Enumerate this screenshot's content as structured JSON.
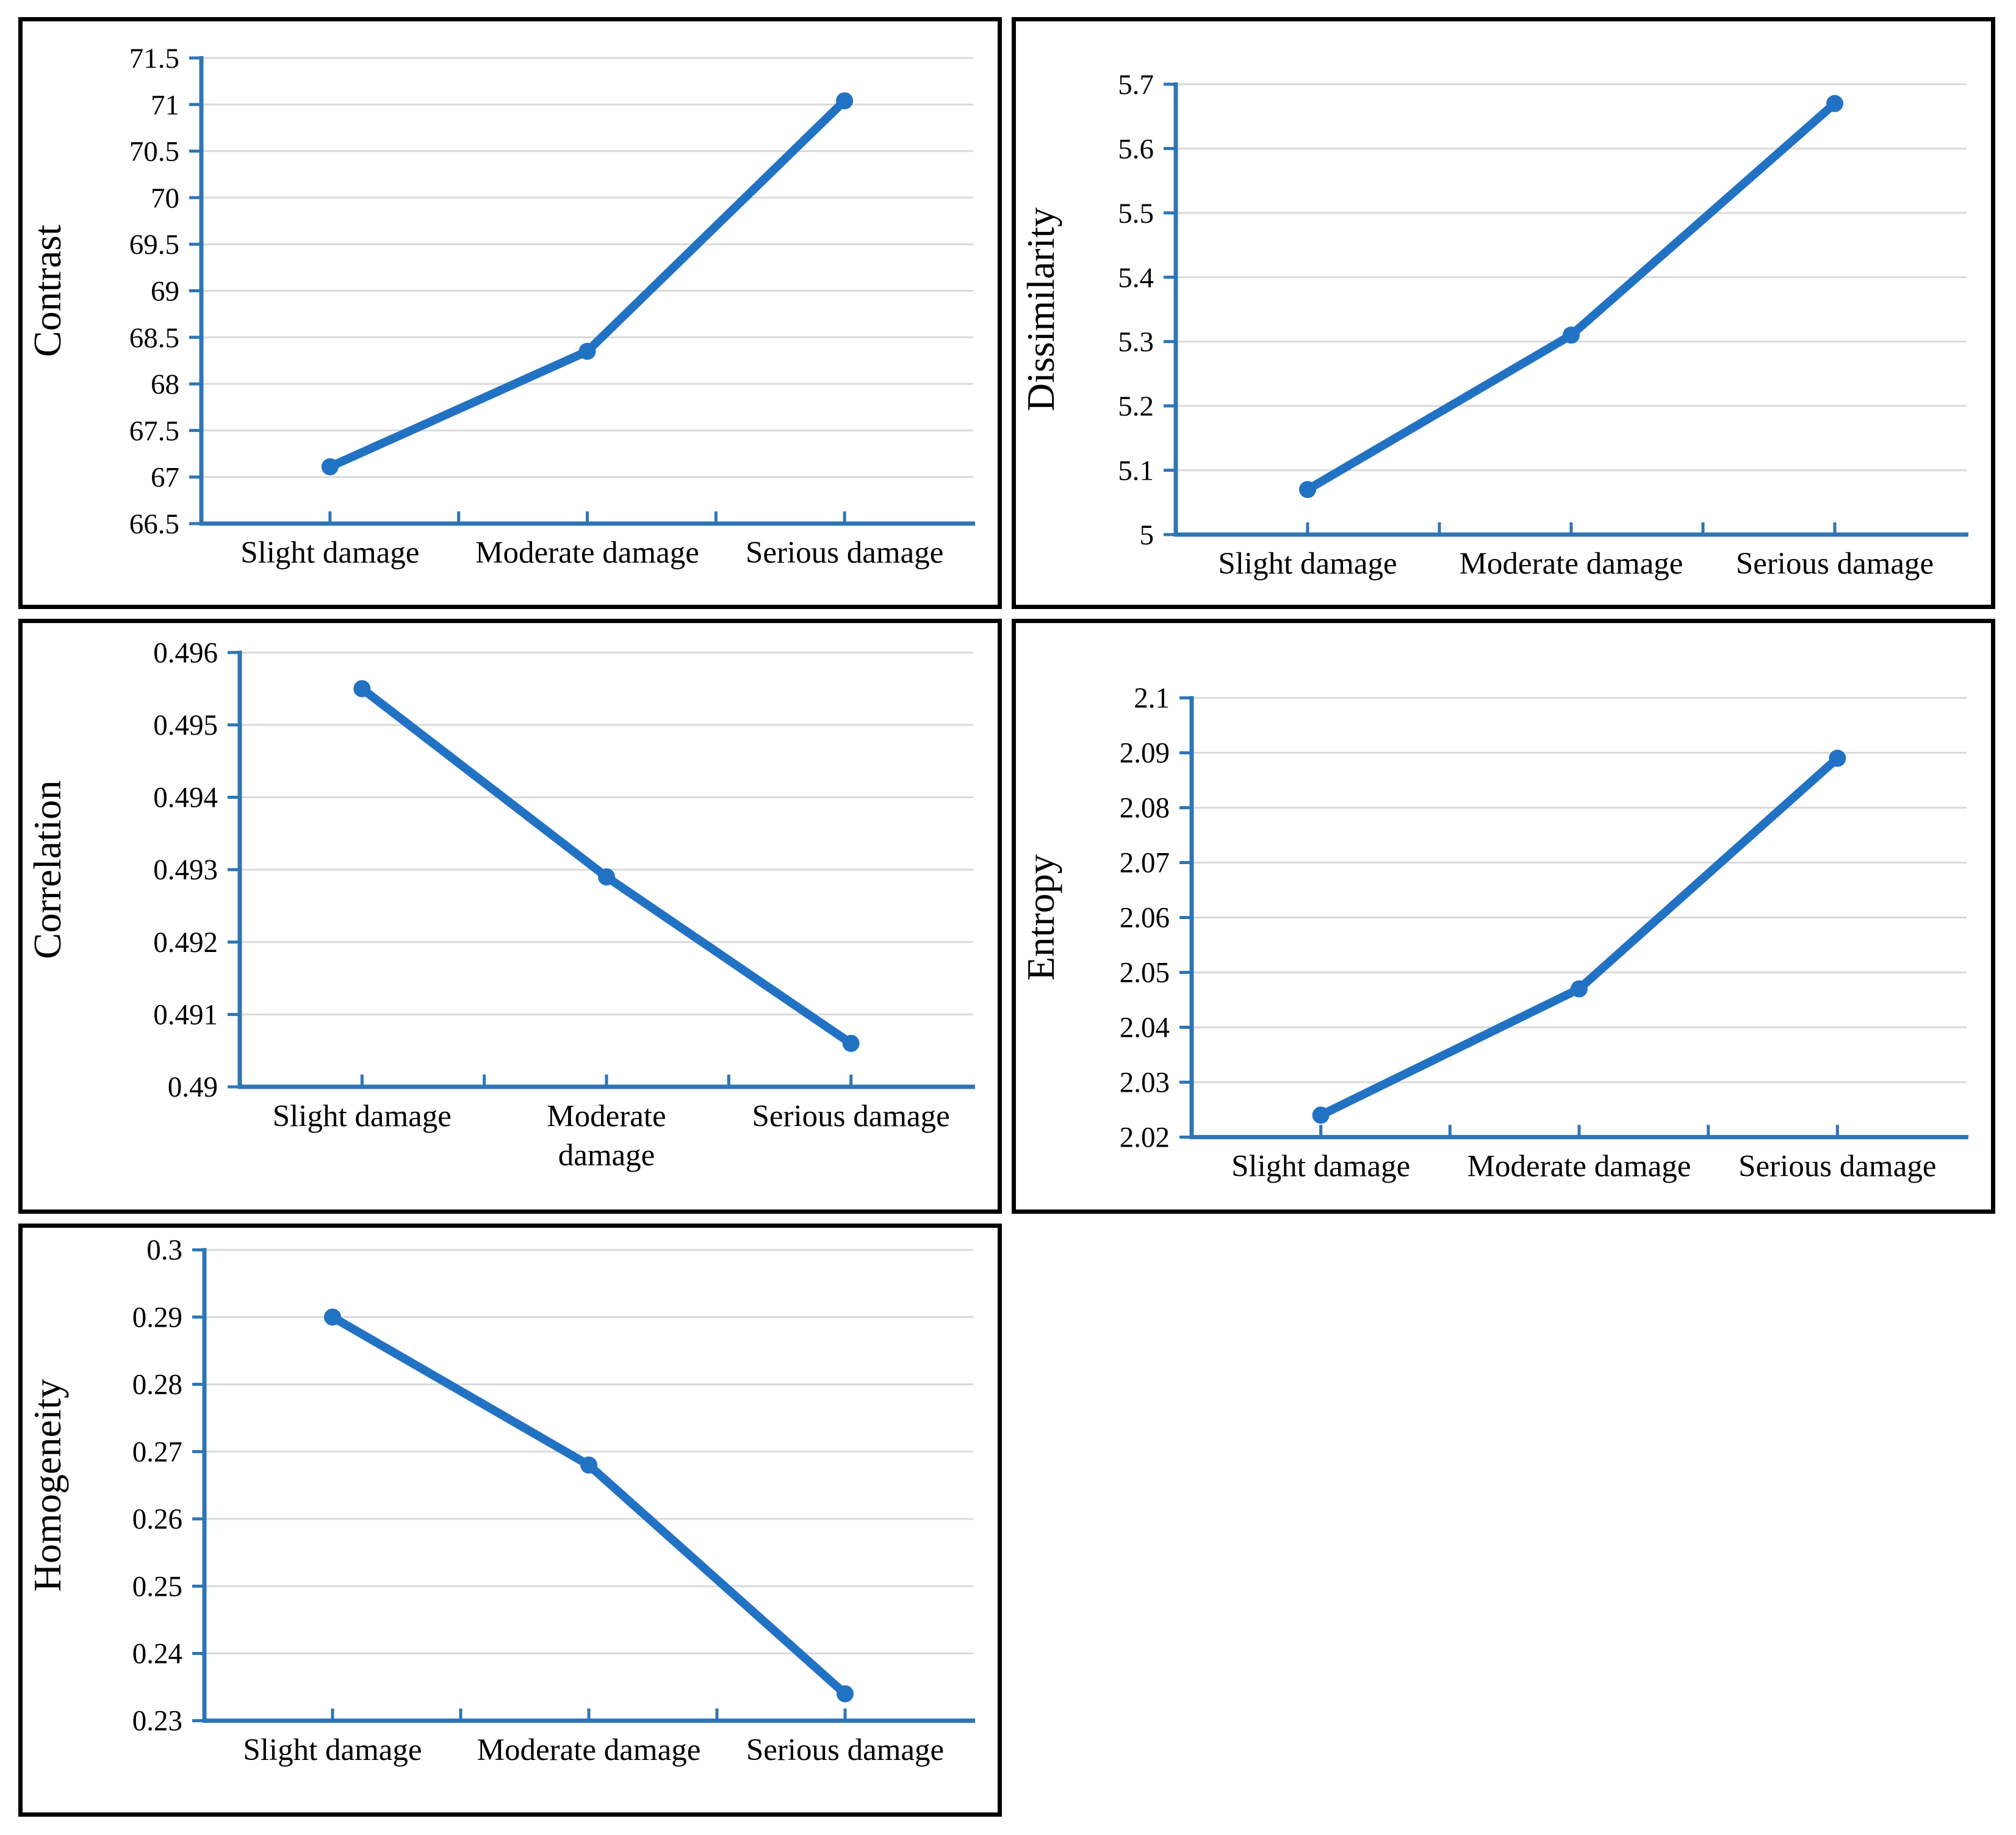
{
  "page": {
    "background": "#ffffff",
    "panel_border_color": "#000000"
  },
  "colors": {
    "series_line": "#2272c4",
    "marker_fill": "#2272c4",
    "axis_line": "#2e75b6",
    "gridline": "#d9d9d9",
    "label_text": "#000000"
  },
  "chart_data": [
    {
      "type": "line",
      "title": "",
      "xlabel": "",
      "ylabel": "Contrast",
      "categories": [
        "Slight damage",
        "Moderate damage",
        "Serious damage"
      ],
      "category_lines": [
        [
          "Slight damage"
        ],
        [
          "Moderate damage"
        ],
        [
          "Serious damage"
        ]
      ],
      "series": [
        {
          "name": "Contrast",
          "values": [
            67.11,
            68.35,
            71.04
          ]
        }
      ],
      "ylim": [
        66.5,
        71.5
      ],
      "ytick_values": [
        66.5,
        67,
        67.5,
        68,
        68.5,
        69,
        69.5,
        70,
        70.5,
        71,
        71.5
      ],
      "ytick_labels": [
        "66.5",
        "67",
        "67.5",
        "68",
        "68.5",
        "69",
        "69.5",
        "70",
        "70.5",
        "71",
        "71.5"
      ],
      "grid": true,
      "legend": "none",
      "marker": "circle"
    },
    {
      "type": "line",
      "title": "",
      "xlabel": "",
      "ylabel": "Dissimilarity",
      "categories": [
        "Slight damage",
        "Moderate damage",
        "Serious damage"
      ],
      "category_lines": [
        [
          "Slight damage"
        ],
        [
          "Moderate damage"
        ],
        [
          "Serious damage"
        ]
      ],
      "series": [
        {
          "name": "Dissimilarity",
          "values": [
            5.07,
            5.31,
            5.67
          ]
        }
      ],
      "ylim": [
        5,
        5.7
      ],
      "ytick_values": [
        5,
        5.1,
        5.2,
        5.3,
        5.4,
        5.5,
        5.6,
        5.7
      ],
      "ytick_labels": [
        "5",
        "5.1",
        "5.2",
        "5.3",
        "5.4",
        "5.5",
        "5.6",
        "5.7"
      ],
      "grid": true,
      "legend": "none",
      "marker": "circle"
    },
    {
      "type": "line",
      "title": "",
      "xlabel": "",
      "ylabel": "Correlation",
      "categories": [
        "Slight damage",
        "Moderate damage",
        "Serious damage"
      ],
      "category_lines": [
        [
          "Slight damage"
        ],
        [
          "Moderate",
          "damage"
        ],
        [
          "Serious damage"
        ]
      ],
      "series": [
        {
          "name": "Correlation",
          "values": [
            0.4955,
            0.4929,
            0.4906
          ]
        }
      ],
      "ylim": [
        0.49,
        0.496
      ],
      "ytick_values": [
        0.49,
        0.491,
        0.492,
        0.493,
        0.494,
        0.495,
        0.496
      ],
      "ytick_labels": [
        "0.49",
        "0.491",
        "0.492",
        "0.493",
        "0.494",
        "0.495",
        "0.496"
      ],
      "grid": true,
      "legend": "none",
      "marker": "circle"
    },
    {
      "type": "line",
      "title": "",
      "xlabel": "",
      "ylabel": "Entropy",
      "categories": [
        "Slight damage",
        "Moderate damage",
        "Serious damage"
      ],
      "category_lines": [
        [
          "Slight damage"
        ],
        [
          "Moderate damage"
        ],
        [
          "Serious damage"
        ]
      ],
      "series": [
        {
          "name": "Entropy",
          "values": [
            2.024,
            2.047,
            2.089
          ]
        }
      ],
      "ylim": [
        2.02,
        2.1
      ],
      "ytick_values": [
        2.02,
        2.03,
        2.04,
        2.05,
        2.06,
        2.07,
        2.08,
        2.09,
        2.1
      ],
      "ytick_labels": [
        "2.02",
        "2.03",
        "2.04",
        "2.05",
        "2.06",
        "2.07",
        "2.08",
        "2.09",
        "2.1"
      ],
      "grid": true,
      "legend": "none",
      "marker": "circle"
    },
    {
      "type": "line",
      "title": "",
      "xlabel": "",
      "ylabel": "Homogeneity",
      "categories": [
        "Slight damage",
        "Moderate damage",
        "Serious damage"
      ],
      "category_lines": [
        [
          "Slight damage"
        ],
        [
          "Moderate damage"
        ],
        [
          "Serious damage"
        ]
      ],
      "series": [
        {
          "name": "Homogeneity",
          "values": [
            0.29,
            0.268,
            0.234
          ]
        }
      ],
      "ylim": [
        0.23,
        0.3
      ],
      "ytick_values": [
        0.23,
        0.24,
        0.25,
        0.26,
        0.27,
        0.28,
        0.29,
        0.3
      ],
      "ytick_labels": [
        "0.23",
        "0.24",
        "0.25",
        "0.26",
        "0.27",
        "0.28",
        "0.29",
        "0.3"
      ],
      "grid": true,
      "legend": "none",
      "marker": "circle"
    }
  ]
}
